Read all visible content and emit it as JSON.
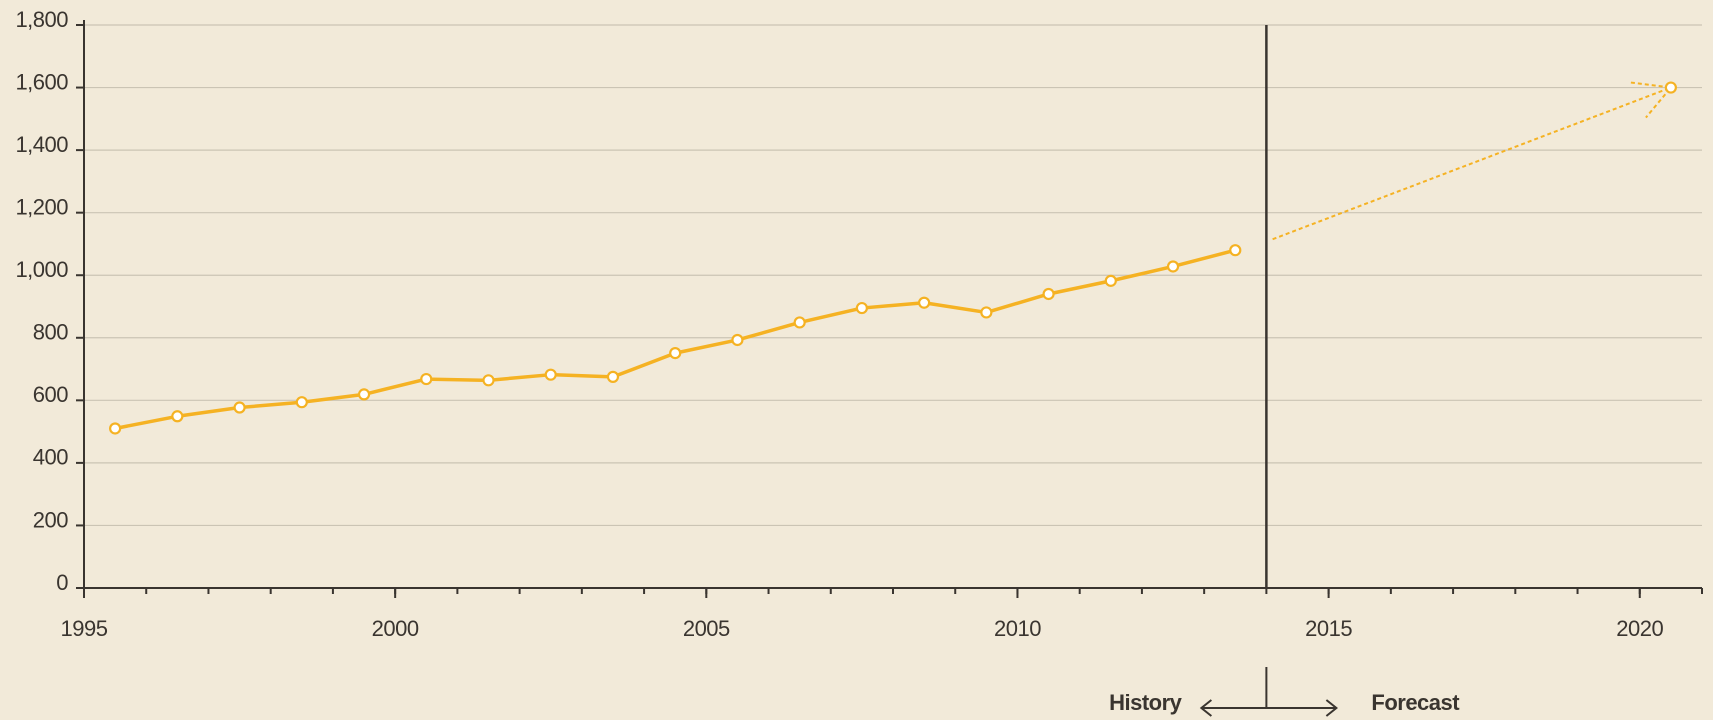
{
  "chart_data": {
    "type": "line",
    "x": [
      1995.5,
      1996.5,
      1997.5,
      1998.5,
      1999.5,
      2000.5,
      2001.5,
      2002.5,
      2003.5,
      2004.5,
      2005.5,
      2006.5,
      2007.5,
      2008.5,
      2009.5,
      2010.5,
      2011.5,
      2012.5,
      2013.5
    ],
    "series": [
      {
        "color": "#f5b223",
        "values": [
          510,
          549,
          577,
          594,
          619,
          668,
          664,
          682,
          675,
          751,
          793,
          849,
          895,
          912,
          881,
          940,
          982,
          1028,
          1080
        ]
      }
    ],
    "forecast": {
      "color": "#f5b223",
      "x": [
        2014.1,
        2020.5
      ],
      "values": [
        1115,
        1600
      ],
      "dashed": true
    },
    "divider_x": 2014,
    "divider_labels": [
      "History",
      "Forecast"
    ],
    "xlim": [
      1995,
      2021
    ],
    "xticks": [
      1995,
      2000,
      2005,
      2010,
      2015,
      2020
    ],
    "xminor_step": 1,
    "ylim": [
      0,
      1800
    ],
    "yticks": [
      0,
      200,
      400,
      600,
      800,
      {
        "value": 1000,
        "label": "1,000"
      },
      {
        "value": 1200,
        "label": "1,200"
      },
      {
        "value": 1400,
        "label": "1,400"
      },
      {
        "value": 1600,
        "label": "1,600"
      },
      {
        "value": 1800,
        "label": "1,800"
      }
    ],
    "grid": true
  }
}
